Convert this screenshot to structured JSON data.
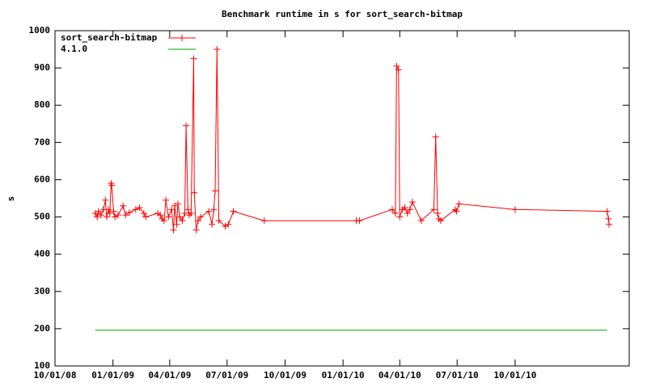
{
  "chart_data": {
    "type": "line",
    "title": "Benchmark runtime in s for sort_search-bitmap",
    "y_label": "s",
    "ylim": [
      100,
      1000
    ],
    "yticks": [
      100,
      200,
      300,
      400,
      500,
      600,
      700,
      800,
      900,
      1000
    ],
    "xlim": [
      "2008-10-01",
      "2011-03-31"
    ],
    "xticks": [
      {
        "value": "2008-10-01",
        "label": "10/01/08"
      },
      {
        "value": "2009-01-01",
        "label": "01/01/09"
      },
      {
        "value": "2009-04-01",
        "label": "04/01/09"
      },
      {
        "value": "2009-07-01",
        "label": "07/01/09"
      },
      {
        "value": "2009-10-01",
        "label": "10/01/09"
      },
      {
        "value": "2010-01-01",
        "label": "01/01/10"
      },
      {
        "value": "2010-04-01",
        "label": "04/01/10"
      },
      {
        "value": "2010-07-01",
        "label": "07/01/10"
      },
      {
        "value": "2010-10-01",
        "label": "10/01/10"
      }
    ],
    "legend": "top-left",
    "series": [
      {
        "name": "sort_search-bitmap",
        "color": "#ff0000",
        "markers": true,
        "x": [
          "2008-12-04",
          "2008-12-07",
          "2008-12-09",
          "2008-12-13",
          "2008-12-17",
          "2008-12-20",
          "2008-12-22",
          "2008-12-25",
          "2008-12-27",
          "2008-12-29",
          "2008-12-30",
          "2009-01-02",
          "2009-01-04",
          "2009-01-09",
          "2009-01-17",
          "2009-01-21",
          "2009-01-27",
          "2009-02-06",
          "2009-02-12",
          "2009-02-19",
          "2009-02-22",
          "2009-03-13",
          "2009-03-17",
          "2009-03-20",
          "2009-03-23",
          "2009-03-26",
          "2009-03-30",
          "2009-04-04",
          "2009-04-07",
          "2009-04-09",
          "2009-04-12",
          "2009-04-14",
          "2009-04-17",
          "2009-04-21",
          "2009-04-25",
          "2009-04-27",
          "2009-04-30",
          "2009-05-02",
          "2009-05-05",
          "2009-05-09",
          "2009-05-10",
          "2009-05-13",
          "2009-05-16",
          "2009-05-20",
          "2009-06-02",
          "2009-06-07",
          "2009-06-10",
          "2009-06-12",
          "2009-06-15",
          "2009-06-18",
          "2009-06-28",
          "2009-07-03",
          "2009-07-11",
          "2009-08-29",
          "2010-01-22",
          "2010-01-27",
          "2010-03-20",
          "2010-03-25",
          "2010-03-27",
          "2010-03-30",
          "2010-04-01",
          "2010-04-05",
          "2010-04-09",
          "2010-04-13",
          "2010-04-17",
          "2010-04-21",
          "2010-05-05",
          "2010-05-25",
          "2010-05-28",
          "2010-05-31",
          "2010-06-02",
          "2010-06-05",
          "2010-06-28",
          "2010-06-30",
          "2010-07-04",
          "2010-10-01",
          "2011-02-24",
          "2011-02-26",
          "2011-02-27"
        ],
        "values": [
          510,
          500,
          515,
          505,
          520,
          545,
          500,
          520,
          510,
          590,
          585,
          515,
          500,
          505,
          530,
          505,
          512,
          520,
          525,
          510,
          500,
          510,
          505,
          495,
          490,
          545,
          500,
          520,
          465,
          530,
          480,
          535,
          500,
          490,
          510,
          745,
          520,
          505,
          510,
          925,
          565,
          465,
          490,
          500,
          515,
          480,
          520,
          570,
          950,
          490,
          475,
          480,
          515,
          490,
          490,
          490,
          520,
          510,
          905,
          895,
          500,
          520,
          525,
          510,
          520,
          540,
          490,
          520,
          715,
          510,
          495,
          490,
          520,
          515,
          535,
          520,
          515,
          495,
          480
        ]
      },
      {
        "name": "4.1.0",
        "color": "#00a000",
        "markers": false,
        "x": [
          "2008-12-04",
          "2011-02-24"
        ],
        "values": [
          196,
          196
        ]
      }
    ]
  }
}
